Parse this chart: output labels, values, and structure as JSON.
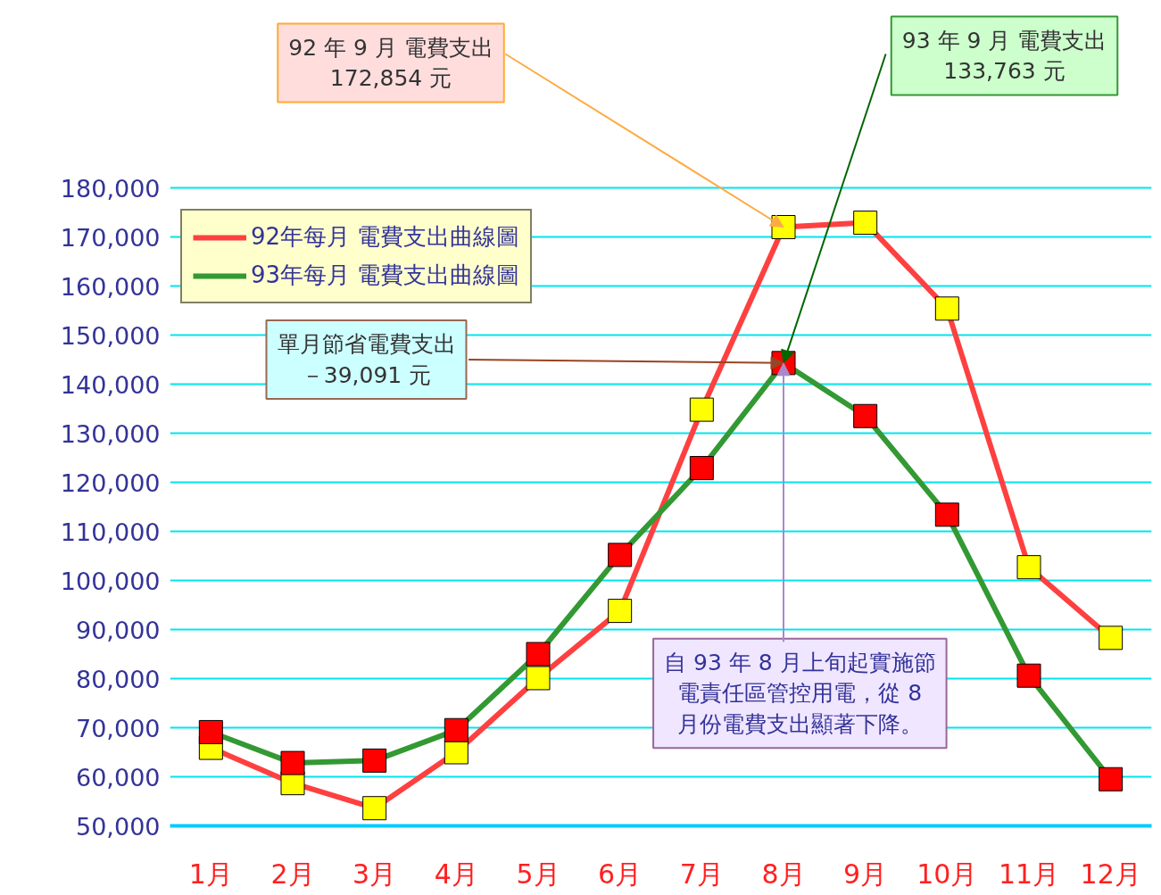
{
  "chart_data": {
    "type": "line",
    "categories": [
      "1月",
      "2月",
      "3月",
      "4月",
      "5月",
      "6月",
      "7月",
      "8月",
      "9月",
      "10月",
      "11月",
      "12月"
    ],
    "series": [
      {
        "name": "92年每月 電費支出曲線圖",
        "color": "#ff4040",
        "colors": [
          "#ffff00",
          "#ffff00",
          "#ffff00",
          "#ffff00",
          "#ffff00",
          "#ffff00",
          "#ffff00",
          "#ffff00",
          "#ffff00",
          "#ffff00",
          "#ffff00",
          "#ffff00"
        ],
        "values": [
          65900,
          58700,
          53600,
          65000,
          80100,
          93800,
          134800,
          172000,
          172900,
          155400,
          102700,
          88300
        ]
      },
      {
        "name": "93年每月 電費支出曲線圖",
        "color": "#339933",
        "colors": [
          "#ff0000",
          "#ff0000",
          "#ff0000",
          "#ff0000",
          "#ff0000",
          "#ff0000",
          "#ff0000",
          "#ff0000",
          "#ff0000",
          "#ff0000",
          "#ff0000",
          "#ff0000"
        ],
        "values": [
          69100,
          62800,
          63300,
          69500,
          85000,
          105200,
          122900,
          144300,
          133500,
          113400,
          80600,
          59500
        ]
      }
    ],
    "ylim": [
      50000,
      180000
    ],
    "yticks": [
      {
        "value": 50000,
        "label": "50,000"
      },
      {
        "value": 60000,
        "label": "60,000"
      },
      {
        "value": 70000,
        "label": "70,000"
      },
      {
        "value": 80000,
        "label": "80,000"
      },
      {
        "value": 90000,
        "label": "90,000"
      },
      {
        "value": 100000,
        "label": "100,000"
      },
      {
        "value": 110000,
        "label": "110,000"
      },
      {
        "value": 120000,
        "label": "120,000"
      },
      {
        "value": 130000,
        "label": "130,000"
      },
      {
        "value": 140000,
        "label": "140,000"
      },
      {
        "value": 150000,
        "label": "150,000"
      },
      {
        "value": 160000,
        "label": "160,000"
      },
      {
        "value": 170000,
        "label": "170,000"
      },
      {
        "value": 180000,
        "label": "180,000"
      }
    ],
    "grid": "y",
    "legend": "top left",
    "marker": "square",
    "line_style": "solid",
    "annotations": [
      {
        "text": "92 年 9 月 電費支出172,854 元",
        "x": "8月",
        "y": 172000
      },
      {
        "text": "93 年 9 月 電費支出133,763 元",
        "x": "8月",
        "y": 144300
      },
      {
        "text": "單月節省電費支出－39,091 元",
        "x": "8月",
        "y": 144300
      },
      {
        "text": "自 93 年 8 月上旬起實施節電責任區管控用電，從 8月份電費支出顯著下降。",
        "x": "8月",
        "y": 144300
      }
    ]
  }
}
